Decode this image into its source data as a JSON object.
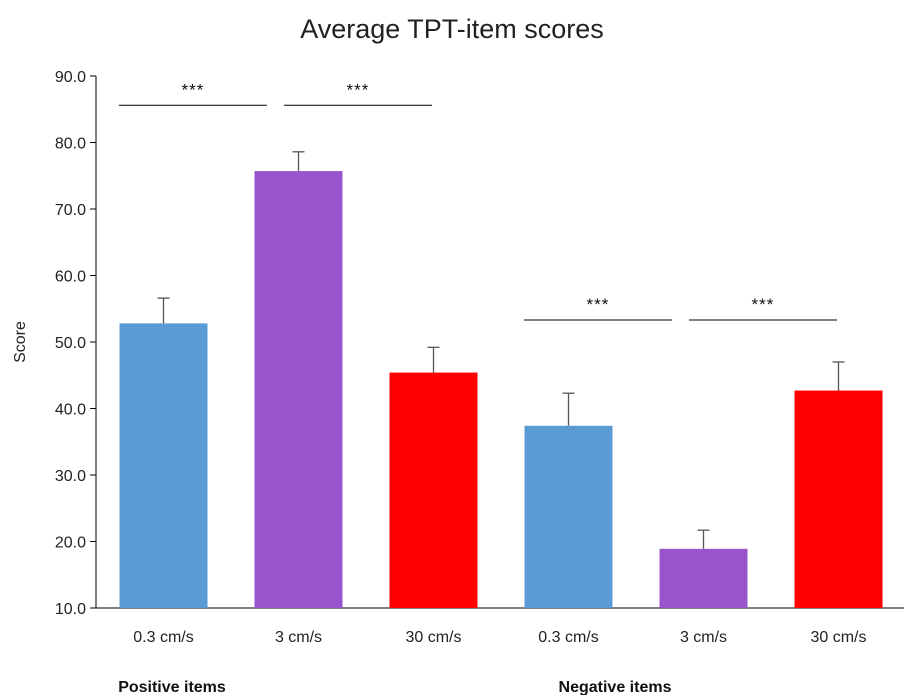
{
  "chart_data": {
    "type": "bar",
    "title": "Average TPT-item scores",
    "xlabel": "",
    "ylabel": "Score",
    "ylim": [
      10,
      90
    ],
    "yticks": [
      "10.0",
      "20.0",
      "30.0",
      "40.0",
      "50.0",
      "60.0",
      "70.0",
      "80.0",
      "90.0"
    ],
    "categories": [
      "0.3 cm/s",
      "3 cm/s",
      "30 cm/s",
      "0.3 cm/s",
      "3 cm/s",
      "30 cm/s"
    ],
    "values": [
      52.8,
      75.7,
      45.4,
      37.4,
      18.9,
      42.7
    ],
    "error_upper": [
      56.6,
      78.6,
      49.2,
      42.3,
      21.7,
      47.0
    ],
    "bar_colors": [
      "#5b9bd5",
      "#9954cc",
      "#ff0000",
      "#5b9bd5",
      "#9954cc",
      "#ff0000"
    ],
    "groups": [
      {
        "label": "Positive items",
        "categories": [
          0,
          1,
          2
        ]
      },
      {
        "label": "Negative items",
        "categories": [
          3,
          4,
          5
        ]
      }
    ],
    "significance": [
      {
        "from": 0,
        "to": 1,
        "label": "***",
        "y": 85.6
      },
      {
        "from": 1,
        "to": 2,
        "label": "***",
        "y": 85.6
      },
      {
        "from": 3,
        "to": 4,
        "label": "***",
        "y": 53.3
      },
      {
        "from": 4,
        "to": 5,
        "label": "***",
        "y": 53.3
      }
    ],
    "grid": false,
    "legend": "none"
  }
}
